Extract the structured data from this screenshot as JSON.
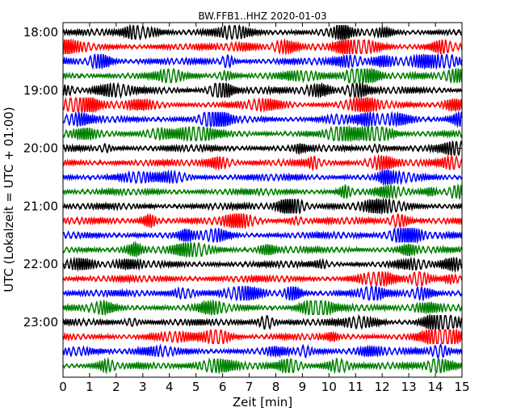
{
  "chart_data": {
    "type": "line",
    "title": "BW.FFB1..HHZ 2020-01-03",
    "xlabel": "Zeit  [min]",
    "ylabel": "UTC (Lokalzeit = UTC + 01:00)",
    "xlim": [
      0,
      15
    ],
    "x_ticks": [
      "0",
      "1",
      "2",
      "3",
      "4",
      "5",
      "6",
      "7",
      "8",
      "9",
      "10",
      "11",
      "12",
      "13",
      "14",
      "15"
    ],
    "y_ticks": [
      "18:00",
      "19:00",
      "20:00",
      "21:00",
      "22:00",
      "23:00"
    ],
    "trace_minutes": 15,
    "trace_start_times": [
      "18:00",
      "18:15",
      "18:30",
      "18:45",
      "19:00",
      "19:15",
      "19:30",
      "19:45",
      "20:00",
      "20:15",
      "20:30",
      "20:45",
      "21:00",
      "21:15",
      "21:30",
      "21:45",
      "22:00",
      "22:15",
      "22:30",
      "22:45",
      "23:00",
      "23:15",
      "23:30",
      "23:45"
    ],
    "trace_colors": [
      "#000000",
      "#ff0000",
      "#0000ff",
      "#008000"
    ],
    "grid": false
  }
}
